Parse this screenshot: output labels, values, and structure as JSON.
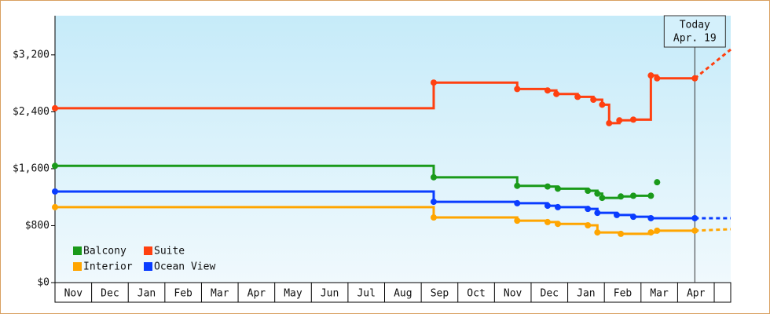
{
  "chart_data": {
    "type": "step-line",
    "xlim": [
      0,
      18.45
    ],
    "xticks": [
      {
        "value": 0.5,
        "label": "Nov"
      },
      {
        "value": 1.5,
        "label": "Dec"
      },
      {
        "value": 2.5,
        "label": "Jan"
      },
      {
        "value": 3.5,
        "label": "Feb"
      },
      {
        "value": 4.5,
        "label": "Mar"
      },
      {
        "value": 5.5,
        "label": "Apr"
      },
      {
        "value": 6.5,
        "label": "May"
      },
      {
        "value": 7.5,
        "label": "Jun"
      },
      {
        "value": 8.5,
        "label": "Jul"
      },
      {
        "value": 9.5,
        "label": "Aug"
      },
      {
        "value": 10.5,
        "label": "Sep"
      },
      {
        "value": 11.5,
        "label": "Oct"
      },
      {
        "value": 12.5,
        "label": "Nov"
      },
      {
        "value": 13.5,
        "label": "Dec"
      },
      {
        "value": 14.5,
        "label": "Jan"
      },
      {
        "value": 15.5,
        "label": "Feb"
      },
      {
        "value": 16.5,
        "label": "Mar"
      },
      {
        "value": 17.5,
        "label": "Apr"
      }
    ],
    "ylim": [
      0,
      3750
    ],
    "yticks": [
      {
        "value": 0,
        "label": "$0"
      },
      {
        "value": 800,
        "label": "$800"
      },
      {
        "value": 1600,
        "label": "$1,600"
      },
      {
        "value": 2400,
        "label": "$2,400"
      },
      {
        "value": 3200,
        "label": "$3,200"
      }
    ],
    "annotation": {
      "label": [
        "Today",
        "Apr. 19"
      ],
      "x": 17.47
    },
    "series": [
      {
        "name": "Balcony",
        "color": "#1a9a1a",
        "x": [
          0,
          10.34,
          12.62,
          13.45,
          13.73,
          14.55,
          14.81,
          14.94,
          15.45,
          15.79,
          16.27,
          16.35,
          16.44
        ],
        "values": [
          1640,
          1480,
          1360,
          1350,
          1320,
          1290,
          1250,
          1190,
          1210,
          1220,
          1220,
          null,
          1410
        ]
      },
      {
        "name": "Suite",
        "color": "#ff4010",
        "x": [
          0,
          10.34,
          12.62,
          13.45,
          13.69,
          14.27,
          14.7,
          14.94,
          15.13,
          15.41,
          15.79,
          16.27,
          16.44,
          17.47
        ],
        "values": [
          2450,
          2810,
          2720,
          2700,
          2650,
          2610,
          2570,
          2500,
          2240,
          2280,
          2290,
          2910,
          2870,
          2870
        ],
        "projection_x": [
          17.47,
          18.45
        ],
        "projection_values": [
          2870,
          3275
        ]
      },
      {
        "name": "Interior",
        "color": "#ffa500",
        "x": [
          0,
          10.34,
          12.62,
          13.45,
          13.73,
          14.55,
          14.81,
          15.45,
          16.27,
          16.44,
          17.47
        ],
        "values": [
          1060,
          915,
          870,
          850,
          825,
          805,
          705,
          685,
          705,
          730,
          730
        ],
        "projection_x": [
          17.47,
          18.45
        ],
        "projection_values": [
          730,
          750
        ]
      },
      {
        "name": "Ocean View",
        "color": "#0a3cff",
        "x": [
          0,
          10.34,
          12.62,
          13.45,
          13.73,
          14.55,
          14.81,
          15.34,
          15.79,
          16.27,
          17.47
        ],
        "values": [
          1280,
          1135,
          1115,
          1080,
          1060,
          1035,
          980,
          950,
          925,
          905,
          905
        ],
        "projection_x": [
          17.47,
          18.45
        ],
        "projection_values": [
          905,
          905
        ]
      }
    ]
  }
}
